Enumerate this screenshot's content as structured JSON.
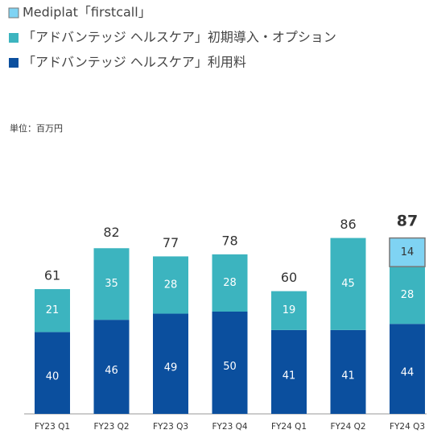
{
  "chart_data": {
    "type": "stacked_bar",
    "unit_label": "単位：百万円",
    "categories": [
      "FY23 Q1",
      "FY23 Q2",
      "FY23 Q3",
      "FY23 Q4",
      "FY24 Q1",
      "FY24 Q2",
      "FY24 Q3"
    ],
    "series": [
      {
        "name": "「アドバンテッジ ヘルスケア」利用料",
        "color": "#0b4f9e",
        "values": [
          40,
          46,
          49,
          50,
          41,
          41,
          44
        ]
      },
      {
        "name": "「アドバンテッジ ヘルスケア」初期導入・オプション",
        "color": "#3cb4bf",
        "values": [
          21,
          35,
          28,
          28,
          19,
          45,
          28
        ]
      },
      {
        "name": "Mediplat「firstcall」",
        "color": "#7fd3f3",
        "values": [
          null,
          null,
          null,
          null,
          null,
          null,
          14
        ]
      }
    ],
    "totals": [
      61,
      82,
      77,
      78,
      60,
      86,
      87
    ]
  }
}
